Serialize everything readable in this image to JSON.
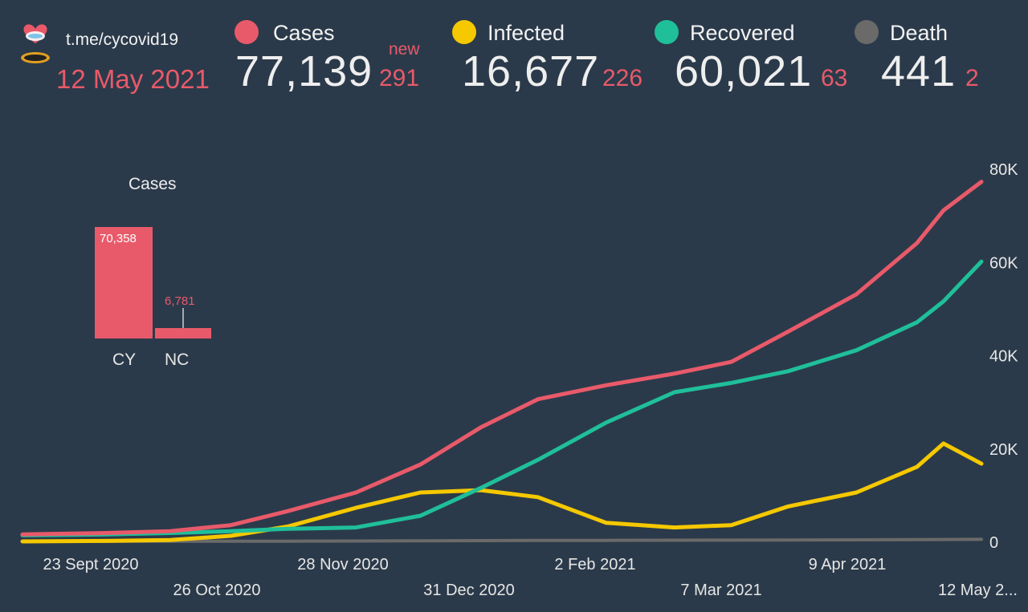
{
  "header": {
    "channel": "t.me/cycovid19",
    "date": "12 May 2021",
    "new_label": "new",
    "stats": [
      {
        "label": "Cases",
        "value": "77,139",
        "new": "291",
        "color": "#e85a6a"
      },
      {
        "label": "Infected",
        "value": "16,677",
        "new": "226",
        "color": "#f5c800"
      },
      {
        "label": "Recovered",
        "value": "60,021",
        "new": "63",
        "color": "#1fbf9a"
      },
      {
        "label": "Death",
        "value": "441",
        "new": "2",
        "color": "#6a6a6a"
      }
    ]
  },
  "inset": {
    "title": "Cases",
    "categories": [
      "CY",
      "NC"
    ],
    "values": [
      70358,
      6781
    ],
    "value_labels": [
      "70,358",
      "6,781"
    ],
    "color": "#e85a6a"
  },
  "chart_data": {
    "type": "line",
    "x_tick_labels": [
      "23 Sept 2020",
      "26 Oct 2020",
      "28 Nov 2020",
      "31 Dec 2020",
      "2 Feb 2021",
      "7 Mar 2021",
      "9 Apr 2021",
      "12 May 2..."
    ],
    "y_tick_labels": [
      "0",
      "20K",
      "40K",
      "60K",
      "80K"
    ],
    "y_ticks": [
      0,
      20000,
      40000,
      60000,
      80000
    ],
    "ylim": [
      0,
      80000
    ],
    "x": [
      "2020-09-01",
      "2020-09-23",
      "2020-10-10",
      "2020-10-26",
      "2020-11-10",
      "2020-11-28",
      "2020-12-15",
      "2020-12-31",
      "2021-01-15",
      "2021-02-02",
      "2021-02-20",
      "2021-03-07",
      "2021-03-22",
      "2021-04-09",
      "2021-04-25",
      "2021-05-02",
      "2021-05-12"
    ],
    "series": [
      {
        "name": "Cases",
        "color": "#e85a6a",
        "values": [
          1500,
          1800,
          2200,
          3500,
          6500,
          10500,
          16500,
          24500,
          30500,
          33500,
          36000,
          38500,
          45000,
          53000,
          64000,
          71000,
          77139
        ]
      },
      {
        "name": "Recovered",
        "color": "#1fbf9a",
        "values": [
          1300,
          1500,
          1800,
          2200,
          2700,
          3000,
          5500,
          11500,
          17500,
          25500,
          32000,
          34000,
          36500,
          41000,
          47000,
          51500,
          60021
        ]
      },
      {
        "name": "Infected",
        "color": "#f5c800",
        "values": [
          0,
          100,
          300,
          1200,
          3200,
          7200,
          10500,
          11000,
          9500,
          4000,
          3000,
          3500,
          7500,
          10500,
          16000,
          21000,
          16677
        ]
      },
      {
        "name": "Death",
        "color": "#6a6a6a",
        "values": [
          20,
          22,
          30,
          40,
          60,
          90,
          130,
          170,
          200,
          230,
          250,
          270,
          300,
          340,
          390,
          420,
          441
        ]
      }
    ]
  }
}
